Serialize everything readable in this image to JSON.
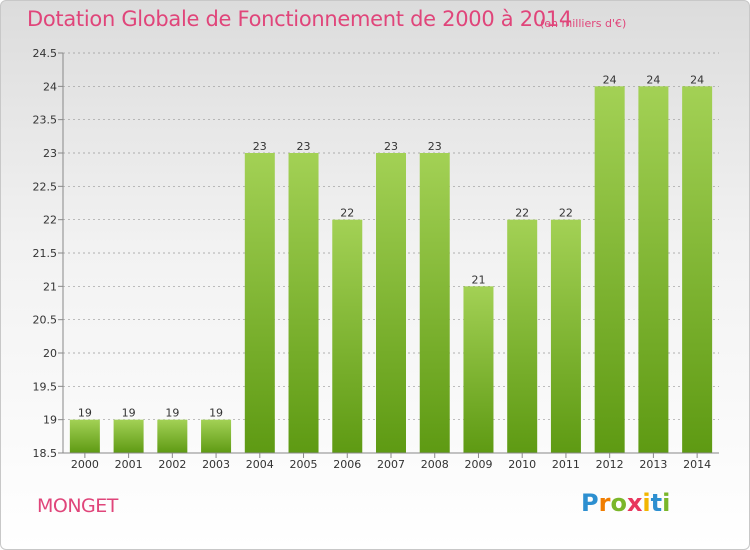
{
  "header": {
    "title": "Dotation Globale de Fonctionnement de 2000 à 2014",
    "units": "(en milliers d'€)"
  },
  "footer": {
    "commune": "MONGET",
    "logo_letters": [
      "P",
      "r",
      "o",
      "x",
      "i",
      "t",
      "i"
    ]
  },
  "colors": {
    "title": "#e0457a",
    "bar_light": "#a3d155",
    "bar_dark": "#5e9a13",
    "axis": "#888888",
    "grid": "#999999"
  },
  "chart_data": {
    "type": "bar",
    "title": "Dotation Globale de Fonctionnement de 2000 à 2014",
    "subtitle": "(en milliers d'€)",
    "xlabel": "",
    "ylabel": "",
    "categories": [
      "2000",
      "2001",
      "2002",
      "2003",
      "2004",
      "2005",
      "2006",
      "2007",
      "2008",
      "2009",
      "2010",
      "2011",
      "2012",
      "2013",
      "2014"
    ],
    "values": [
      19,
      19,
      19,
      19,
      23,
      23,
      22,
      23,
      23,
      21,
      22,
      22,
      24,
      24,
      24
    ],
    "data_labels": [
      "19",
      "19",
      "19",
      "19",
      "23",
      "23",
      "22",
      "23",
      "23",
      "21",
      "22",
      "22",
      "24",
      "24",
      "24"
    ],
    "ylim": [
      18.5,
      24.5
    ],
    "yticks": [
      18.5,
      19,
      19.5,
      20,
      20.5,
      21,
      21.5,
      22,
      22.5,
      23,
      23.5,
      24,
      24.5
    ],
    "ytick_labels": [
      "18.5",
      "19",
      "19.5",
      "20",
      "20.5",
      "21",
      "21.5",
      "22",
      "22.5",
      "23",
      "23.5",
      "24",
      "24.5"
    ],
    "grid": "horizontal dashed",
    "legend": "none"
  }
}
